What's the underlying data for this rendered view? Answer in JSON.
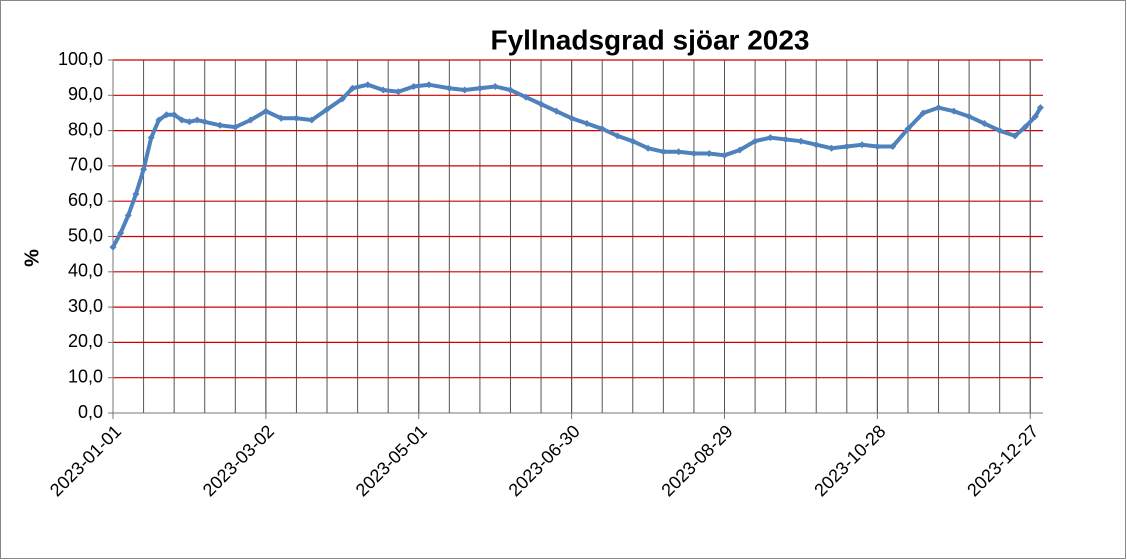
{
  "chart_data": {
    "type": "line",
    "title": "Fyllnadsgrad sjöar 2023",
    "y_label": "%",
    "x": [
      "2023-01-01",
      "2023-01-04",
      "2023-01-07",
      "2023-01-10",
      "2023-01-13",
      "2023-01-16",
      "2023-01-19",
      "2023-01-22",
      "2023-01-25",
      "2023-01-28",
      "2023-01-31",
      "2023-02-03",
      "2023-02-06",
      "2023-02-12",
      "2023-02-18",
      "2023-02-24",
      "2023-03-02",
      "2023-03-08",
      "2023-03-14",
      "2023-03-20",
      "2023-03-26",
      "2023-04-01",
      "2023-04-05",
      "2023-04-11",
      "2023-04-17",
      "2023-04-23",
      "2023-04-29",
      "2023-05-05",
      "2023-05-13",
      "2023-05-19",
      "2023-05-25",
      "2023-05-31",
      "2023-06-06",
      "2023-06-12",
      "2023-06-18",
      "2023-06-24",
      "2023-06-30",
      "2023-07-06",
      "2023-07-12",
      "2023-07-18",
      "2023-07-24",
      "2023-07-30",
      "2023-08-05",
      "2023-08-11",
      "2023-08-17",
      "2023-08-23",
      "2023-08-29",
      "2023-09-04",
      "2023-09-10",
      "2023-09-16",
      "2023-09-22",
      "2023-09-28",
      "2023-10-04",
      "2023-10-10",
      "2023-10-16",
      "2023-10-22",
      "2023-10-28",
      "2023-11-03",
      "2023-11-09",
      "2023-11-15",
      "2023-11-21",
      "2023-11-27",
      "2023-12-03",
      "2023-12-09",
      "2023-12-15",
      "2023-12-21",
      "2023-12-25",
      "2023-12-29",
      "2023-12-31"
    ],
    "series": [
      {
        "name": "Fyllnadsgrad",
        "color": "#4f81bd",
        "values": [
          47,
          51,
          56,
          62,
          69,
          78,
          83,
          84.5,
          84.5,
          83,
          82.5,
          83,
          82.5,
          81.5,
          81,
          83,
          85.5,
          83.5,
          83.5,
          83,
          86,
          89,
          92,
          93,
          91.5,
          91,
          92.5,
          93,
          92,
          91.5,
          92,
          92.5,
          91.5,
          89.5,
          87.5,
          85.5,
          83.5,
          82,
          80.5,
          78.5,
          77,
          75,
          74,
          74,
          73.5,
          73.5,
          73,
          74.5,
          77,
          78,
          77.5,
          77,
          76,
          75,
          75.5,
          76,
          75.5,
          75.5,
          80.5,
          85,
          86.5,
          85.5,
          84,
          82,
          80,
          78.5,
          81,
          84,
          86.5
        ]
      }
    ],
    "xlim": [
      "2023-01-01",
      "2023-12-31"
    ],
    "xticks": [
      "2023-01-01",
      "2023-03-02",
      "2023-05-01",
      "2023-06-30",
      "2023-08-29",
      "2023-10-28",
      "2023-12-27"
    ],
    "ylim": [
      0,
      100
    ],
    "yticks": [
      {
        "value": 0,
        "label": "0,0"
      },
      {
        "value": 10,
        "label": "10,0"
      },
      {
        "value": 20,
        "label": "20,0"
      },
      {
        "value": 30,
        "label": "30,0"
      },
      {
        "value": 40,
        "label": "40,0"
      },
      {
        "value": 50,
        "label": "50,0"
      },
      {
        "value": 60,
        "label": "60,0"
      },
      {
        "value": 70,
        "label": "70,0"
      },
      {
        "value": 80,
        "label": "80,0"
      },
      {
        "value": 90,
        "label": "90,0"
      },
      {
        "value": 100,
        "label": "100,0"
      }
    ],
    "grid": true
  }
}
